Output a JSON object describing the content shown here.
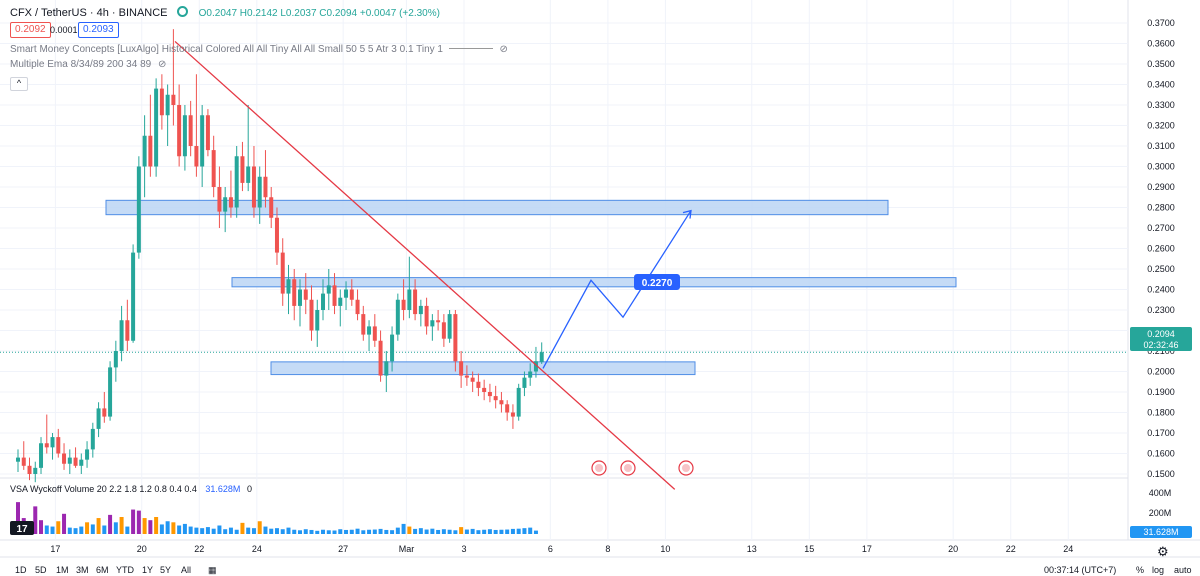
{
  "header": {
    "symbol": "CFX / TetherUS · 4h · BINANCE",
    "ohlc": "O0.2047 H0.2142 L0.2037 C0.2094 +0.0047 (+2.30%)",
    "bid": "0.2092",
    "spread": "0.0001",
    "ask": "0.2093",
    "indicator1": "Smart Money Concepts [LuxAlgo] Historical Colored All All Tiny All All Small 50 5 5 Atr 3 0.1 Tiny 1",
    "indicator2": "Multiple Ema 8/34/89 200 34 89",
    "collapse": "^"
  },
  "colors": {
    "bull": "#26a69a",
    "bear": "#ef5350",
    "trendline": "#e53945",
    "zone_fill": "#bbd5f5",
    "zone_border": "#4f8ee6",
    "projection": "#2962ff",
    "vol_climax": "#9c27b0",
    "vol_high": "#ff9800",
    "vol_normal": "#2196f3"
  },
  "chart_data": {
    "type": "candlestick",
    "y_ticks": [
      "0.3700",
      "0.3600",
      "0.3500",
      "0.3400",
      "0.3300",
      "0.3200",
      "0.3100",
      "0.3000",
      "0.2900",
      "0.2800",
      "0.2700",
      "0.2600",
      "0.2500",
      "0.2400",
      "0.2300",
      "0.2200",
      "0.2100",
      "0.2000",
      "0.1900",
      "0.1800",
      "0.1700",
      "0.1600",
      "0.1500"
    ],
    "x_ticks": [
      "17",
      "20",
      "22",
      "24",
      "27",
      "Mar",
      "3",
      "6",
      "8",
      "10",
      "13",
      "15",
      "17",
      "20",
      "22",
      "24"
    ],
    "ylim": [
      0.145,
      0.372
    ],
    "last_price": {
      "value": "0.2094",
      "countdown": "02:32:46"
    },
    "target_label": "0.2270",
    "support_resistance_zones": [
      {
        "low": 0.2765,
        "high": 0.2835
      },
      {
        "low": 0.2413,
        "high": 0.2458
      },
      {
        "low": 0.1985,
        "high": 0.2047
      }
    ],
    "trendline": [
      {
        "index": 0,
        "price": 0.361
      },
      {
        "index": 99,
        "price": 0.1425
      }
    ],
    "projection_path": [
      0.2015,
      0.2445,
      0.2265,
      0.2785
    ],
    "candles": [
      [
        0.156,
        0.162,
        0.151,
        0.158
      ],
      [
        0.158,
        0.166,
        0.152,
        0.154
      ],
      [
        0.154,
        0.158,
        0.147,
        0.15
      ],
      [
        0.15,
        0.156,
        0.146,
        0.153
      ],
      [
        0.153,
        0.168,
        0.15,
        0.165
      ],
      [
        0.165,
        0.179,
        0.16,
        0.163
      ],
      [
        0.163,
        0.17,
        0.157,
        0.168
      ],
      [
        0.168,
        0.172,
        0.158,
        0.16
      ],
      [
        0.16,
        0.165,
        0.152,
        0.155
      ],
      [
        0.155,
        0.162,
        0.15,
        0.158
      ],
      [
        0.158,
        0.163,
        0.153,
        0.154
      ],
      [
        0.154,
        0.16,
        0.15,
        0.157
      ],
      [
        0.157,
        0.166,
        0.153,
        0.162
      ],
      [
        0.162,
        0.175,
        0.158,
        0.172
      ],
      [
        0.172,
        0.185,
        0.168,
        0.182
      ],
      [
        0.182,
        0.19,
        0.175,
        0.178
      ],
      [
        0.178,
        0.205,
        0.176,
        0.202
      ],
      [
        0.202,
        0.215,
        0.195,
        0.21
      ],
      [
        0.21,
        0.232,
        0.205,
        0.225
      ],
      [
        0.225,
        0.235,
        0.21,
        0.215
      ],
      [
        0.215,
        0.262,
        0.214,
        0.258
      ],
      [
        0.258,
        0.305,
        0.255,
        0.3
      ],
      [
        0.3,
        0.325,
        0.285,
        0.315
      ],
      [
        0.315,
        0.335,
        0.295,
        0.3
      ],
      [
        0.3,
        0.343,
        0.295,
        0.338
      ],
      [
        0.338,
        0.345,
        0.318,
        0.325
      ],
      [
        0.325,
        0.34,
        0.31,
        0.335
      ],
      [
        0.335,
        0.367,
        0.32,
        0.33
      ],
      [
        0.33,
        0.34,
        0.3,
        0.305
      ],
      [
        0.305,
        0.33,
        0.298,
        0.325
      ],
      [
        0.325,
        0.332,
        0.305,
        0.31
      ],
      [
        0.31,
        0.345,
        0.295,
        0.3
      ],
      [
        0.3,
        0.33,
        0.29,
        0.325
      ],
      [
        0.325,
        0.328,
        0.305,
        0.308
      ],
      [
        0.308,
        0.315,
        0.285,
        0.29
      ],
      [
        0.29,
        0.3,
        0.27,
        0.278
      ],
      [
        0.278,
        0.29,
        0.268,
        0.285
      ],
      [
        0.285,
        0.298,
        0.275,
        0.28
      ],
      [
        0.28,
        0.31,
        0.275,
        0.305
      ],
      [
        0.305,
        0.312,
        0.288,
        0.292
      ],
      [
        0.292,
        0.33,
        0.288,
        0.3
      ],
      [
        0.3,
        0.31,
        0.275,
        0.28
      ],
      [
        0.28,
        0.3,
        0.272,
        0.295
      ],
      [
        0.295,
        0.308,
        0.28,
        0.285
      ],
      [
        0.285,
        0.29,
        0.27,
        0.275
      ],
      [
        0.275,
        0.28,
        0.252,
        0.258
      ],
      [
        0.258,
        0.265,
        0.232,
        0.238
      ],
      [
        0.238,
        0.252,
        0.228,
        0.245
      ],
      [
        0.245,
        0.25,
        0.225,
        0.232
      ],
      [
        0.232,
        0.245,
        0.222,
        0.24
      ],
      [
        0.24,
        0.248,
        0.228,
        0.235
      ],
      [
        0.235,
        0.242,
        0.215,
        0.22
      ],
      [
        0.22,
        0.235,
        0.212,
        0.23
      ],
      [
        0.23,
        0.245,
        0.225,
        0.238
      ],
      [
        0.238,
        0.25,
        0.23,
        0.242
      ],
      [
        0.242,
        0.248,
        0.228,
        0.232
      ],
      [
        0.232,
        0.24,
        0.222,
        0.236
      ],
      [
        0.236,
        0.244,
        0.23,
        0.24
      ],
      [
        0.24,
        0.245,
        0.232,
        0.235
      ],
      [
        0.235,
        0.24,
        0.225,
        0.228
      ],
      [
        0.228,
        0.232,
        0.215,
        0.218
      ],
      [
        0.218,
        0.225,
        0.21,
        0.222
      ],
      [
        0.222,
        0.228,
        0.212,
        0.215
      ],
      [
        0.215,
        0.22,
        0.195,
        0.198
      ],
      [
        0.198,
        0.21,
        0.19,
        0.205
      ],
      [
        0.205,
        0.222,
        0.2,
        0.218
      ],
      [
        0.218,
        0.238,
        0.215,
        0.235
      ],
      [
        0.235,
        0.245,
        0.225,
        0.23
      ],
      [
        0.23,
        0.256,
        0.226,
        0.24
      ],
      [
        0.24,
        0.245,
        0.225,
        0.228
      ],
      [
        0.228,
        0.235,
        0.222,
        0.232
      ],
      [
        0.232,
        0.236,
        0.218,
        0.222
      ],
      [
        0.222,
        0.228,
        0.215,
        0.225
      ],
      [
        0.225,
        0.23,
        0.22,
        0.224
      ],
      [
        0.224,
        0.228,
        0.212,
        0.216
      ],
      [
        0.216,
        0.23,
        0.214,
        0.228
      ],
      [
        0.228,
        0.23,
        0.2,
        0.205
      ],
      [
        0.205,
        0.21,
        0.192,
        0.198
      ],
      [
        0.198,
        0.203,
        0.193,
        0.197
      ],
      [
        0.197,
        0.2,
        0.19,
        0.195
      ],
      [
        0.195,
        0.199,
        0.188,
        0.192
      ],
      [
        0.192,
        0.196,
        0.186,
        0.19
      ],
      [
        0.19,
        0.194,
        0.185,
        0.188
      ],
      [
        0.188,
        0.193,
        0.182,
        0.186
      ],
      [
        0.186,
        0.19,
        0.18,
        0.184
      ],
      [
        0.184,
        0.186,
        0.176,
        0.18
      ],
      [
        0.18,
        0.184,
        0.172,
        0.178
      ],
      [
        0.178,
        0.194,
        0.176,
        0.192
      ],
      [
        0.192,
        0.2,
        0.188,
        0.197
      ],
      [
        0.197,
        0.204,
        0.193,
        0.2
      ],
      [
        0.2,
        0.212,
        0.197,
        0.205
      ],
      [
        0.2047,
        0.2142,
        0.2037,
        0.2094
      ]
    ],
    "volume_ticks": [
      "400M",
      "200M"
    ],
    "volume_label": "31.628M",
    "volume_indicator": "VSA Wyckoff Volume 20 2.2 1.8 1.2 0.8 0.4 0.4",
    "volume_value": "31.628M",
    "volume_zero": "0",
    "volume": [
      [
        "c",
        300
      ],
      [
        "c",
        150
      ],
      [
        "c",
        80
      ],
      [
        "c",
        260
      ],
      [
        "c",
        130
      ],
      [
        "n",
        80
      ],
      [
        "n",
        70
      ],
      [
        "h",
        120
      ],
      [
        "c",
        190
      ],
      [
        "n",
        60
      ],
      [
        "n",
        55
      ],
      [
        "n",
        70
      ],
      [
        "h",
        110
      ],
      [
        "n",
        90
      ],
      [
        "h",
        150
      ],
      [
        "n",
        80
      ],
      [
        "c",
        180
      ],
      [
        "n",
        110
      ],
      [
        "h",
        160
      ],
      [
        "n",
        70
      ],
      [
        "c",
        230
      ],
      [
        "c",
        220
      ],
      [
        "h",
        150
      ],
      [
        "c",
        130
      ],
      [
        "h",
        160
      ],
      [
        "n",
        90
      ],
      [
        "n",
        120
      ],
      [
        "h",
        110
      ],
      [
        "n",
        80
      ],
      [
        "n",
        95
      ],
      [
        "n",
        70
      ],
      [
        "n",
        60
      ],
      [
        "n",
        55
      ],
      [
        "n",
        65
      ],
      [
        "n",
        50
      ],
      [
        "n",
        80
      ],
      [
        "n",
        45
      ],
      [
        "n",
        60
      ],
      [
        "n",
        40
      ],
      [
        "h",
        105
      ],
      [
        "n",
        60
      ],
      [
        "n",
        55
      ],
      [
        "h",
        120
      ],
      [
        "n",
        70
      ],
      [
        "n",
        50
      ],
      [
        "n",
        55
      ],
      [
        "n",
        45
      ],
      [
        "n",
        60
      ],
      [
        "n",
        40
      ],
      [
        "n",
        35
      ],
      [
        "n",
        45
      ],
      [
        "n",
        38
      ],
      [
        "n",
        30
      ],
      [
        "n",
        40
      ],
      [
        "n",
        35
      ],
      [
        "n",
        33
      ],
      [
        "n",
        45
      ],
      [
        "n",
        38
      ],
      [
        "n",
        40
      ],
      [
        "n",
        50
      ],
      [
        "n",
        35
      ],
      [
        "n",
        40
      ],
      [
        "n",
        42
      ],
      [
        "n",
        48
      ],
      [
        "n",
        38
      ],
      [
        "n",
        36
      ],
      [
        "n",
        60
      ],
      [
        "n",
        95
      ],
      [
        "h",
        70
      ],
      [
        "n",
        48
      ],
      [
        "n",
        55
      ],
      [
        "n",
        42
      ],
      [
        "n",
        50
      ],
      [
        "n",
        38
      ],
      [
        "n",
        45
      ],
      [
        "n",
        40
      ],
      [
        "n",
        35
      ],
      [
        "h",
        65
      ],
      [
        "n",
        42
      ],
      [
        "n",
        48
      ],
      [
        "n",
        36
      ],
      [
        "n",
        40
      ],
      [
        "n",
        45
      ],
      [
        "n",
        38
      ],
      [
        "n",
        40
      ],
      [
        "n",
        42
      ],
      [
        "n",
        48
      ],
      [
        "n",
        50
      ],
      [
        "n",
        55
      ],
      [
        "n",
        60
      ],
      [
        "n",
        32
      ]
    ]
  },
  "bottom_bar": {
    "timeframes": [
      "1D",
      "5D",
      "1M",
      "3M",
      "6M",
      "YTD",
      "1Y",
      "5Y",
      "All"
    ],
    "clock": "00:37:14 (UTC+7)",
    "percent": "%",
    "log": "log",
    "auto": "auto"
  }
}
